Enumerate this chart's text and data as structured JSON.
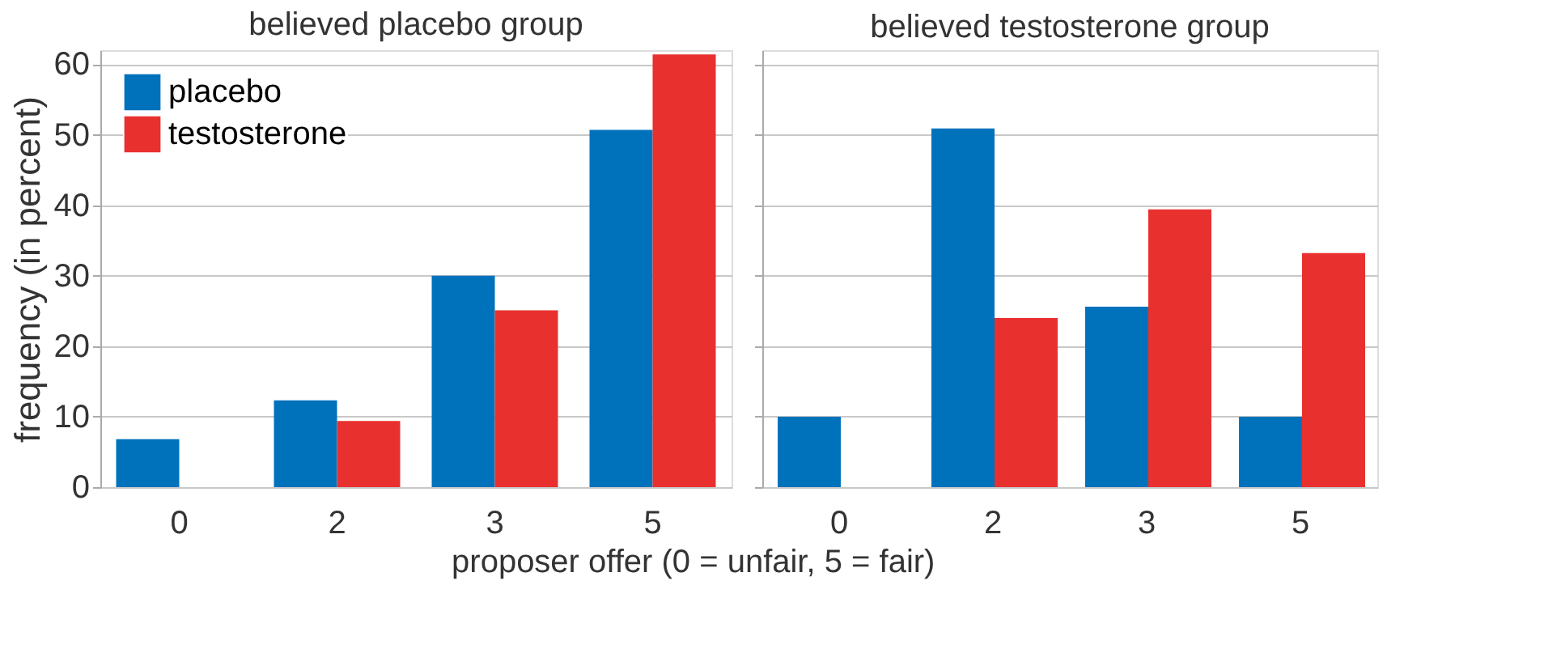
{
  "chart_data": [
    {
      "type": "bar",
      "title": "believed placebo group",
      "xlabel": "proposer offer (0 = unfair, 5 = fair)",
      "ylabel": "frequency (in percent)",
      "categories": [
        "0",
        "2",
        "3",
        "5"
      ],
      "series": [
        {
          "name": "placebo",
          "color": "#0072bc",
          "values": [
            6.8,
            12.3,
            30,
            50.7
          ]
        },
        {
          "name": "testosterone",
          "color": "#e8312f",
          "values": [
            0,
            9.4,
            25.1,
            61.4
          ]
        }
      ],
      "ylim": [
        0,
        62
      ],
      "yticks": [
        0,
        10,
        20,
        30,
        40,
        50,
        60
      ],
      "grid": "y",
      "legend": "top left"
    },
    {
      "type": "bar",
      "title": "believed testosterone group",
      "categories": [
        "0",
        "2",
        "3",
        "5"
      ],
      "series": [
        {
          "name": "placebo",
          "color": "#0072bc",
          "values": [
            10,
            50.9,
            25.6,
            10
          ]
        },
        {
          "name": "testosterone",
          "color": "#e8312f",
          "values": [
            0,
            24,
            39.4,
            33.2
          ]
        }
      ],
      "ylim": [
        0,
        62
      ],
      "yticks": [
        0,
        10,
        20,
        30,
        40,
        50,
        60
      ],
      "grid": "y",
      "legend": false,
      "tick_labels": "x"
    }
  ]
}
